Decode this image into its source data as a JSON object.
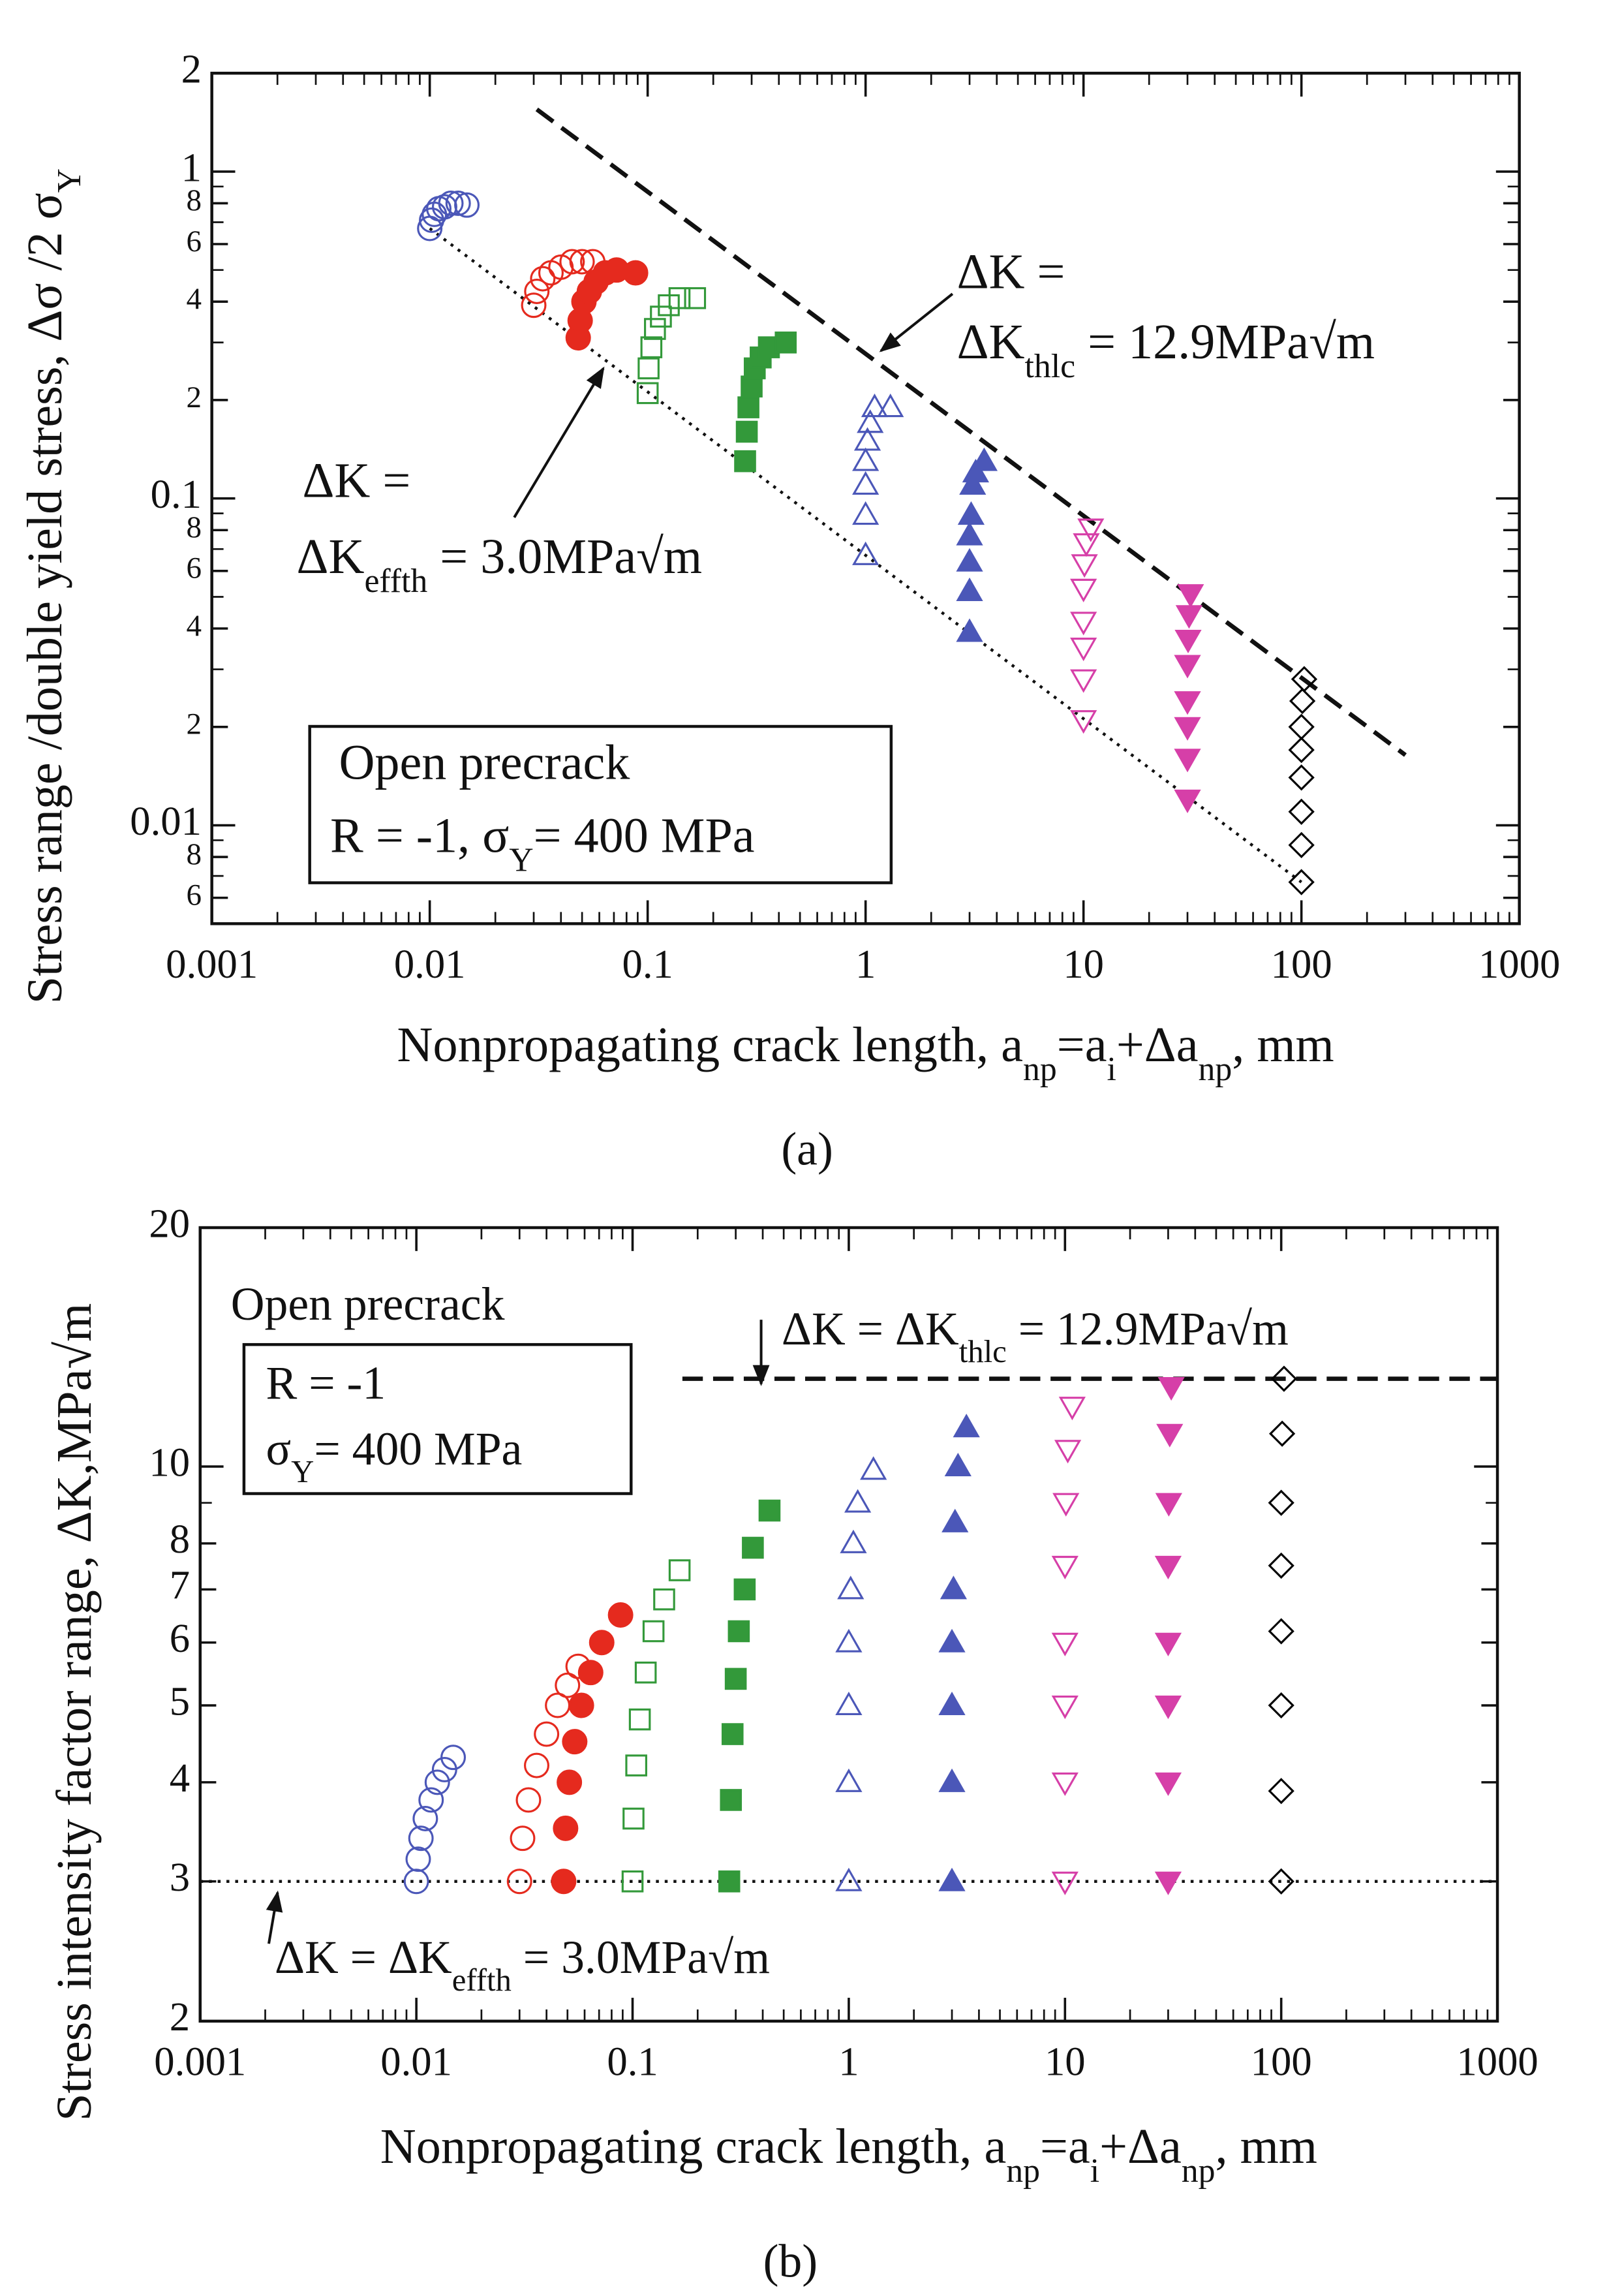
{
  "chart_data": [
    {
      "type": "scatter",
      "xscale": "log",
      "yscale": "log",
      "caption": "(a)",
      "xlabel": [
        "Nonpropagating crack length, a",
        "np",
        "=a",
        "i",
        "+Δa",
        "np",
        ", mm"
      ],
      "ylabel": [
        "Stress range /double yield stress,  Δσ /2 σ",
        "Y"
      ],
      "xlim": [
        0.001,
        1000
      ],
      "xticks": [
        0.001,
        0.01,
        0.1,
        1,
        10,
        100,
        1000
      ],
      "ylim": [
        0.005,
        2
      ],
      "yticks": [
        2,
        1,
        {
          "value": 0.8,
          "label": "8"
        },
        {
          "value": 0.6,
          "label": "6"
        },
        {
          "value": 0.4,
          "label": "4"
        },
        {
          "value": 0.2,
          "label": "2"
        },
        0.1,
        {
          "value": 0.08,
          "label": "8"
        },
        {
          "value": 0.06,
          "label": "6"
        },
        {
          "value": 0.04,
          "label": "4"
        },
        {
          "value": 0.02,
          "label": "2"
        },
        0.01,
        {
          "value": 0.008,
          "label": "8"
        },
        {
          "value": 0.006,
          "label": "6"
        }
      ],
      "annotations": [
        "ΔK =",
        [
          "ΔK",
          "thlc",
          " = 12.9MPa√m"
        ],
        "ΔK =",
        [
          "ΔK",
          "effth",
          " = 3.0MPa√m"
        ],
        "Open precrack",
        [
          "R = -1,  σ",
          "Y",
          "= 400 MPa"
        ]
      ],
      "lines": [
        {
          "x": [
            0.031,
            300
          ],
          "y": [
            1.55,
            0.0164
          ],
          "style": "dashed"
        },
        {
          "x": [
            0.01,
            100
          ],
          "y": [
            0.67,
            0.0067
          ],
          "style": "dotted"
        }
      ],
      "series": [
        {
          "color": "#4b57b8",
          "marker": "circle",
          "filled": false,
          "x": [
            0.01,
            0.0102,
            0.0105,
            0.011,
            0.0117,
            0.0125,
            0.0135,
            0.0148
          ],
          "y": [
            0.67,
            0.71,
            0.74,
            0.77,
            0.78,
            0.8,
            0.8,
            0.79
          ]
        },
        {
          "color": "#e52a1e",
          "marker": "circle",
          "filled": false,
          "x": [
            0.03,
            0.031,
            0.033,
            0.036,
            0.04,
            0.045,
            0.05,
            0.056
          ],
          "y": [
            0.39,
            0.43,
            0.47,
            0.49,
            0.51,
            0.53,
            0.53,
            0.53
          ]
        },
        {
          "color": "#e52a1e",
          "marker": "circle",
          "filled": true,
          "x": [
            0.048,
            0.049,
            0.051,
            0.054,
            0.058,
            0.064,
            0.072,
            0.088
          ],
          "y": [
            0.31,
            0.35,
            0.4,
            0.43,
            0.46,
            0.49,
            0.5,
            0.49
          ]
        },
        {
          "color": "#33993a",
          "marker": "square",
          "filled": false,
          "x": [
            0.1,
            0.101,
            0.104,
            0.108,
            0.115,
            0.125,
            0.14,
            0.165
          ],
          "y": [
            0.21,
            0.25,
            0.29,
            0.33,
            0.36,
            0.39,
            0.41,
            0.41
          ]
        },
        {
          "color": "#33993a",
          "marker": "square",
          "filled": true,
          "x": [
            0.28,
            0.285,
            0.29,
            0.3,
            0.31,
            0.33,
            0.36,
            0.43
          ],
          "y": [
            0.13,
            0.16,
            0.19,
            0.22,
            0.25,
            0.27,
            0.29,
            0.3
          ]
        },
        {
          "color": "#4b57b8",
          "marker": "triangle-up",
          "filled": false,
          "x": [
            1.0,
            1.0,
            1.0,
            1.0,
            1.02,
            1.05,
            1.1,
            1.3
          ],
          "y": [
            0.067,
            0.089,
            0.11,
            0.13,
            0.15,
            0.17,
            0.19,
            0.19
          ]
        },
        {
          "color": "#4b57b8",
          "marker": "triangle-up",
          "filled": true,
          "x": [
            3.0,
            3.0,
            3.0,
            3.0,
            3.05,
            3.1,
            3.2,
            3.5
          ],
          "y": [
            0.039,
            0.052,
            0.064,
            0.077,
            0.089,
            0.11,
            0.12,
            0.13
          ]
        },
        {
          "color": "#d63fa8",
          "marker": "triangle-down",
          "filled": false,
          "x": [
            10,
            10,
            10,
            10,
            10,
            10.1,
            10.3,
            10.8
          ],
          "y": [
            0.021,
            0.028,
            0.035,
            0.042,
            0.053,
            0.063,
            0.073,
            0.081
          ]
        },
        {
          "color": "#d63fa8",
          "marker": "triangle-down",
          "filled": true,
          "x": [
            30,
            30,
            30,
            30,
            30,
            30.2,
            30.5,
            31
          ],
          "y": [
            0.012,
            0.016,
            0.02,
            0.024,
            0.031,
            0.037,
            0.044,
            0.051
          ]
        },
        {
          "color": "#000000",
          "marker": "diamond",
          "filled": false,
          "x": [
            100,
            100,
            100,
            100,
            100,
            100,
            101,
            103
          ],
          "y": [
            0.0067,
            0.0087,
            0.011,
            0.014,
            0.017,
            0.02,
            0.024,
            0.028
          ]
        }
      ]
    },
    {
      "type": "scatter",
      "xscale": "log",
      "yscale": "log",
      "caption": "(b)",
      "xlabel": [
        "Nonpropagating crack length, a",
        "np",
        "=a",
        "i",
        "+Δa",
        "np",
        ", mm"
      ],
      "ylabel": "Stress intensity factor range, ΔK,MPa√m",
      "xlim": [
        0.001,
        1000
      ],
      "xticks": [
        0.001,
        0.01,
        0.1,
        1,
        10,
        100,
        1000
      ],
      "ylim": [
        2,
        20
      ],
      "yticks": [
        2,
        3,
        4,
        5,
        6,
        7,
        8,
        10,
        20
      ],
      "annotations": [
        "Open precrack",
        "R = -1",
        [
          "σ",
          "Y",
          "= 400 MPa"
        ],
        [
          "ΔK = ΔK",
          "thlc",
          " = 12.9MPa√m"
        ],
        [
          "ΔK = ΔK",
          "effth",
          " = 3.0MPa√m"
        ]
      ],
      "lines": [
        {
          "x": [
            0.17,
            1000
          ],
          "y": [
            12.9,
            12.9
          ],
          "style": "dashed"
        },
        {
          "x": [
            0.001,
            1000
          ],
          "y": [
            3,
            3
          ],
          "style": "dotted"
        }
      ],
      "series": [
        {
          "color": "#4b57b8",
          "marker": "circle",
          "filled": false,
          "x": [
            0.01,
            0.0102,
            0.0105,
            0.011,
            0.0117,
            0.0125,
            0.0135,
            0.0148
          ],
          "y": [
            3,
            3.2,
            3.4,
            3.6,
            3.8,
            4.0,
            4.15,
            4.3
          ]
        },
        {
          "color": "#e52a1e",
          "marker": "circle",
          "filled": false,
          "x": [
            0.03,
            0.031,
            0.033,
            0.036,
            0.04,
            0.045,
            0.05,
            0.056
          ],
          "y": [
            3,
            3.4,
            3.8,
            4.2,
            4.6,
            5.0,
            5.3,
            5.6
          ]
        },
        {
          "color": "#e52a1e",
          "marker": "circle",
          "filled": true,
          "x": [
            0.048,
            0.049,
            0.051,
            0.054,
            0.058,
            0.064,
            0.072,
            0.088
          ],
          "y": [
            3,
            3.5,
            4,
            4.5,
            5,
            5.5,
            6,
            6.5
          ]
        },
        {
          "color": "#33993a",
          "marker": "square",
          "filled": false,
          "x": [
            0.1,
            0.101,
            0.104,
            0.108,
            0.115,
            0.125,
            0.14,
            0.165
          ],
          "y": [
            3,
            3.6,
            4.2,
            4.8,
            5.5,
            6.2,
            6.8,
            7.4
          ]
        },
        {
          "color": "#33993a",
          "marker": "square",
          "filled": true,
          "x": [
            0.28,
            0.285,
            0.29,
            0.3,
            0.31,
            0.33,
            0.36,
            0.43
          ],
          "y": [
            3,
            3.8,
            4.6,
            5.4,
            6.2,
            7.0,
            7.9,
            8.8
          ]
        },
        {
          "color": "#4b57b8",
          "marker": "triangle-up",
          "filled": false,
          "x": [
            1.0,
            1.0,
            1.0,
            1.0,
            1.02,
            1.05,
            1.1,
            1.3
          ],
          "y": [
            3,
            4,
            5,
            6,
            7,
            8,
            9,
            9.9
          ]
        },
        {
          "color": "#4b57b8",
          "marker": "triangle-up",
          "filled": true,
          "x": [
            3.0,
            3.0,
            3.0,
            3.0,
            3.05,
            3.1,
            3.2,
            3.5
          ],
          "y": [
            3,
            4,
            5,
            6,
            7,
            8.5,
            10,
            11.2
          ]
        },
        {
          "color": "#d63fa8",
          "marker": "triangle-down",
          "filled": false,
          "x": [
            10,
            10,
            10,
            10,
            10,
            10.1,
            10.3,
            10.8
          ],
          "y": [
            3,
            4,
            5,
            6,
            7.5,
            9,
            10.5,
            11.9
          ]
        },
        {
          "color": "#d63fa8",
          "marker": "triangle-down",
          "filled": true,
          "x": [
            30,
            30,
            30,
            30,
            30,
            30.2,
            30.5,
            31
          ],
          "y": [
            3,
            4,
            5,
            6,
            7.5,
            9,
            11,
            12.6
          ]
        },
        {
          "color": "#000000",
          "marker": "diamond",
          "filled": false,
          "x": [
            100,
            100,
            100,
            100,
            100,
            100,
            101,
            103
          ],
          "y": [
            3,
            3.9,
            5,
            6.2,
            7.5,
            9,
            11,
            12.9
          ]
        }
      ]
    }
  ]
}
